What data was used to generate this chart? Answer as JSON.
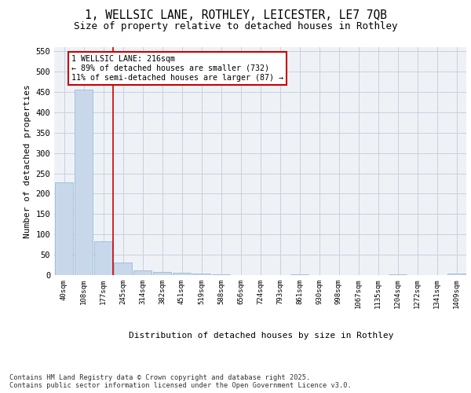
{
  "title1": "1, WELLSIC LANE, ROTHLEY, LEICESTER, LE7 7QB",
  "title2": "Size of property relative to detached houses in Rothley",
  "xlabel": "Distribution of detached houses by size in Rothley",
  "ylabel": "Number of detached properties",
  "categories": [
    "40sqm",
    "108sqm",
    "177sqm",
    "245sqm",
    "314sqm",
    "382sqm",
    "451sqm",
    "519sqm",
    "588sqm",
    "656sqm",
    "724sqm",
    "793sqm",
    "861sqm",
    "930sqm",
    "998sqm",
    "1067sqm",
    "1135sqm",
    "1204sqm",
    "1272sqm",
    "1341sqm",
    "1409sqm"
  ],
  "values": [
    228,
    455,
    83,
    30,
    12,
    8,
    6,
    3,
    1,
    0,
    0,
    0,
    1,
    0,
    0,
    0,
    0,
    1,
    0,
    0,
    3
  ],
  "bar_color": "#c8d8ea",
  "bar_edge_color": "#9abbd0",
  "grid_color": "#c8d0dc",
  "vline_x": 2.5,
  "vline_color": "#cc0000",
  "annotation_text": "1 WELLSIC LANE: 216sqm\n← 89% of detached houses are smaller (732)\n11% of semi-detached houses are larger (87) →",
  "box_color": "#cc0000",
  "ylim": [
    0,
    560
  ],
  "yticks": [
    0,
    50,
    100,
    150,
    200,
    250,
    300,
    350,
    400,
    450,
    500,
    550
  ],
  "footer": "Contains HM Land Registry data © Crown copyright and database right 2025.\nContains public sector information licensed under the Open Government Licence v3.0.",
  "bg_color": "#eef2f7",
  "title1_fontsize": 10.5,
  "title2_fontsize": 9
}
